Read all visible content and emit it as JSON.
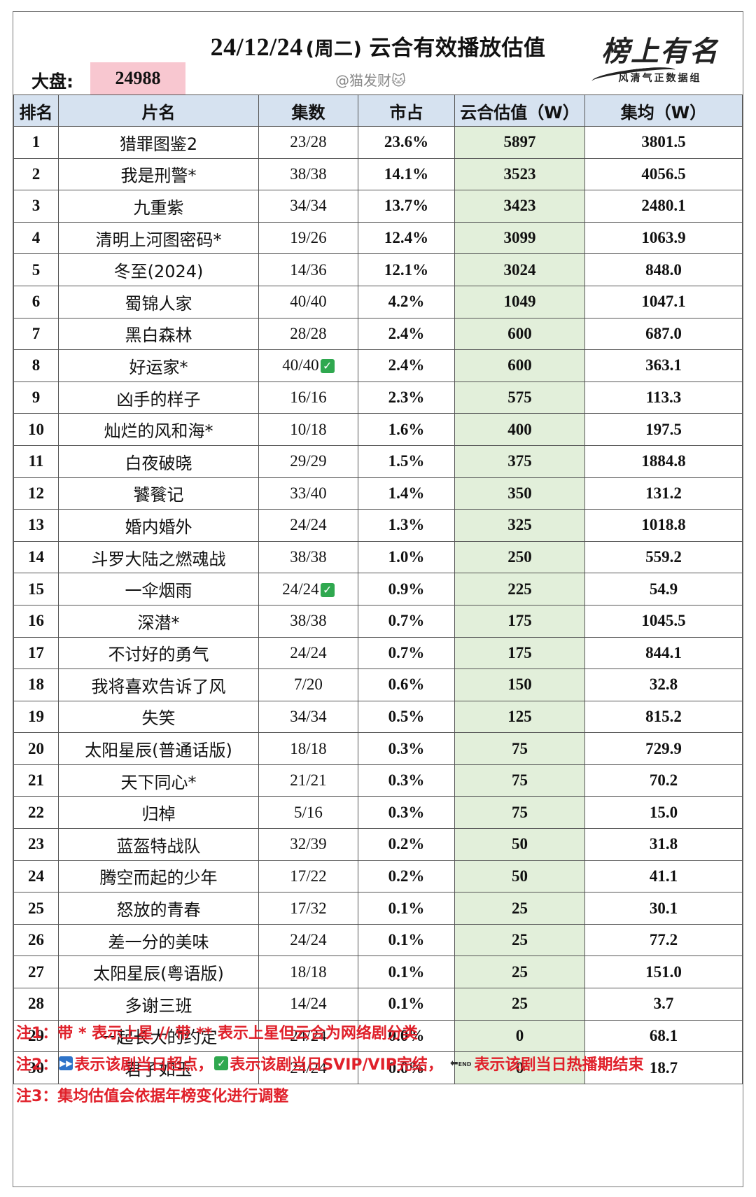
{
  "header": {
    "date": "24/12/24",
    "weekday": "(周二)",
    "title": "云合有效播放估值",
    "market_label": "大盘:",
    "market_value": "24988",
    "watermark": "@猫发财🐱",
    "logo_text": "榜上有名",
    "logo_subtitle": "风清气正数据组"
  },
  "table": {
    "columns": [
      "排名",
      "片名",
      "集数",
      "市占",
      "云合估值（W）",
      "集均（W）"
    ],
    "rows": [
      {
        "rank": "1",
        "name": "猎罪图鉴2",
        "episodes": "23/28",
        "check": false,
        "share": "23.6%",
        "estimate": "5897",
        "avg": "3801.5"
      },
      {
        "rank": "2",
        "name": "我是刑警*",
        "episodes": "38/38",
        "check": false,
        "share": "14.1%",
        "estimate": "3523",
        "avg": "4056.5"
      },
      {
        "rank": "3",
        "name": "九重紫",
        "episodes": "34/34",
        "check": false,
        "share": "13.7%",
        "estimate": "3423",
        "avg": "2480.1"
      },
      {
        "rank": "4",
        "name": "清明上河图密码*",
        "episodes": "19/26",
        "check": false,
        "share": "12.4%",
        "estimate": "3099",
        "avg": "1063.9"
      },
      {
        "rank": "5",
        "name": "冬至(2024)",
        "episodes": "14/36",
        "check": false,
        "share": "12.1%",
        "estimate": "3024",
        "avg": "848.0"
      },
      {
        "rank": "6",
        "name": "蜀锦人家",
        "episodes": "40/40",
        "check": false,
        "share": "4.2%",
        "estimate": "1049",
        "avg": "1047.1"
      },
      {
        "rank": "7",
        "name": "黑白森林",
        "episodes": "28/28",
        "check": false,
        "share": "2.4%",
        "estimate": "600",
        "avg": "687.0"
      },
      {
        "rank": "8",
        "name": "好运家*",
        "episodes": "40/40",
        "check": true,
        "share": "2.4%",
        "estimate": "600",
        "avg": "363.1"
      },
      {
        "rank": "9",
        "name": "凶手的样子",
        "episodes": "16/16",
        "check": false,
        "share": "2.3%",
        "estimate": "575",
        "avg": "113.3"
      },
      {
        "rank": "10",
        "name": "灿烂的风和海*",
        "episodes": "10/18",
        "check": false,
        "share": "1.6%",
        "estimate": "400",
        "avg": "197.5"
      },
      {
        "rank": "11",
        "name": "白夜破晓",
        "episodes": "29/29",
        "check": false,
        "share": "1.5%",
        "estimate": "375",
        "avg": "1884.8"
      },
      {
        "rank": "12",
        "name": "饕餮记",
        "episodes": "33/40",
        "check": false,
        "share": "1.4%",
        "estimate": "350",
        "avg": "131.2"
      },
      {
        "rank": "13",
        "name": "婚内婚外",
        "episodes": "24/24",
        "check": false,
        "share": "1.3%",
        "estimate": "325",
        "avg": "1018.8"
      },
      {
        "rank": "14",
        "name": "斗罗大陆之燃魂战",
        "episodes": "38/38",
        "check": false,
        "share": "1.0%",
        "estimate": "250",
        "avg": "559.2"
      },
      {
        "rank": "15",
        "name": "一伞烟雨",
        "episodes": "24/24",
        "check": true,
        "share": "0.9%",
        "estimate": "225",
        "avg": "54.9"
      },
      {
        "rank": "16",
        "name": "深潜*",
        "episodes": "38/38",
        "check": false,
        "share": "0.7%",
        "estimate": "175",
        "avg": "1045.5"
      },
      {
        "rank": "17",
        "name": "不讨好的勇气",
        "episodes": "24/24",
        "check": false,
        "share": "0.7%",
        "estimate": "175",
        "avg": "844.1"
      },
      {
        "rank": "18",
        "name": "我将喜欢告诉了风",
        "episodes": "7/20",
        "check": false,
        "share": "0.6%",
        "estimate": "150",
        "avg": "32.8"
      },
      {
        "rank": "19",
        "name": "失笑",
        "episodes": "34/34",
        "check": false,
        "share": "0.5%",
        "estimate": "125",
        "avg": "815.2"
      },
      {
        "rank": "20",
        "name": "太阳星辰(普通话版)",
        "episodes": "18/18",
        "check": false,
        "share": "0.3%",
        "estimate": "75",
        "avg": "729.9"
      },
      {
        "rank": "21",
        "name": "天下同心*",
        "episodes": "21/21",
        "check": false,
        "share": "0.3%",
        "estimate": "75",
        "avg": "70.2"
      },
      {
        "rank": "22",
        "name": "归棹",
        "episodes": "5/16",
        "check": false,
        "share": "0.3%",
        "estimate": "75",
        "avg": "15.0"
      },
      {
        "rank": "23",
        "name": "蓝盔特战队",
        "episodes": "32/39",
        "check": false,
        "share": "0.2%",
        "estimate": "50",
        "avg": "31.8"
      },
      {
        "rank": "24",
        "name": "腾空而起的少年",
        "episodes": "17/22",
        "check": false,
        "share": "0.2%",
        "estimate": "50",
        "avg": "41.1"
      },
      {
        "rank": "25",
        "name": "怒放的青春",
        "episodes": "17/32",
        "check": false,
        "share": "0.1%",
        "estimate": "25",
        "avg": "30.1"
      },
      {
        "rank": "26",
        "name": "差一分的美味",
        "episodes": "24/24",
        "check": false,
        "share": "0.1%",
        "estimate": "25",
        "avg": "77.2"
      },
      {
        "rank": "27",
        "name": "太阳星辰(粤语版)",
        "episodes": "18/18",
        "check": false,
        "share": "0.1%",
        "estimate": "25",
        "avg": "151.0"
      },
      {
        "rank": "28",
        "name": "多谢三班",
        "episodes": "14/24",
        "check": false,
        "share": "0.1%",
        "estimate": "25",
        "avg": "3.7"
      },
      {
        "rank": "29",
        "name": "一起长大的约定",
        "episodes": "24/24",
        "check": false,
        "share": "0.0%",
        "estimate": "0",
        "avg": "68.1"
      },
      {
        "rank": "30",
        "name": "君子如玉",
        "episodes": "24/24",
        "check": false,
        "share": "0.0%",
        "estimate": "0",
        "avg": "18.7"
      }
    ]
  },
  "notes": {
    "note1": "注1：带 * 表示上星 // 带 ** 表示上星但云合为网络剧分类",
    "note2_prefix": "注2：",
    "note2_a": "表示该剧当日超点，",
    "note2_b": "表示该剧当日SVIP/VIP完结，",
    "note2_c": "表示该剧当日热播期结束",
    "note3": "注3：集均估值会依据年榜变化进行调整",
    "end_icon_text": "END"
  },
  "colors": {
    "header_bg": "#d6e2f0",
    "estimate_bg": "#e2efda",
    "market_bg": "#f8c7d0",
    "note_red": "#e0202a",
    "check_green": "#2fa84f",
    "play_blue": "#2f74c9"
  }
}
